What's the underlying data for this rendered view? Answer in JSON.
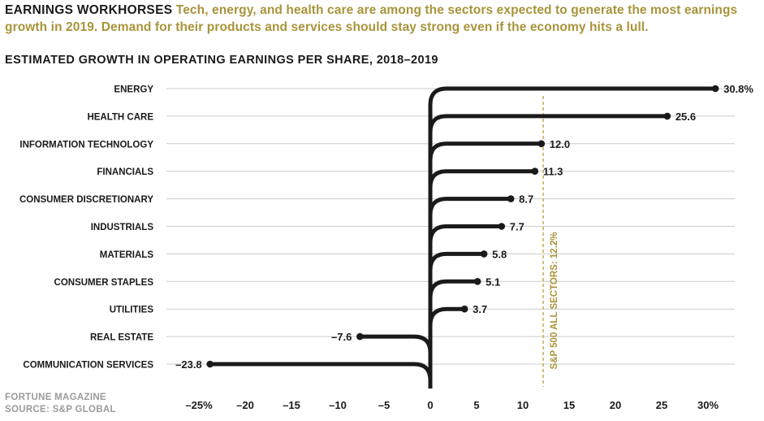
{
  "header": {
    "headline": "EARNINGS WORKHORSES",
    "text": "Tech, energy, and health care are among the sectors expected to generate the most earnings growth in 2019. Demand for their products and services should stay strong even if the economy hits a lull."
  },
  "credits": {
    "publisher": "FORTUNE MAGAZINE",
    "source": "SOURCE: S&P GLOBAL"
  },
  "colors": {
    "bar": "#1a1a1a",
    "accent": "#a8943a",
    "grid": "#cccccc",
    "reference": "#c8b25a"
  },
  "chart_data": {
    "type": "bar",
    "orientation": "horizontal",
    "title": "ESTIMATED GROWTH IN OPERATING EARNINGS PER SHARE, 2018–2019",
    "categories": [
      "ENERGY",
      "HEALTH CARE",
      "INFORMATION TECHNOLOGY",
      "FINANCIALS",
      "CONSUMER DISCRETIONARY",
      "INDUSTRIALS",
      "MATERIALS",
      "CONSUMER STAPLES",
      "UTILITIES",
      "REAL ESTATE",
      "COMMUNICATION SERVICES"
    ],
    "values": [
      30.8,
      25.6,
      12.0,
      11.3,
      8.7,
      7.7,
      5.8,
      5.1,
      3.7,
      -7.6,
      -23.8
    ],
    "value_labels": [
      "30.8%",
      "25.6",
      "12.0",
      "11.3",
      "8.7",
      "7.7",
      "5.8",
      "5.1",
      "3.7",
      "–7.6",
      "–23.8"
    ],
    "xlim": [
      -25,
      30
    ],
    "xticks": [
      -25,
      -20,
      -15,
      -10,
      -5,
      0,
      5,
      10,
      15,
      20,
      25,
      30
    ],
    "xtick_labels": [
      "–25%",
      "–20",
      "–15",
      "–10",
      "–5",
      "0",
      "5",
      "10",
      "15",
      "20",
      "25",
      "30%"
    ],
    "grid": true,
    "reference_line": {
      "value": 12.2,
      "label": "S&P 500 ALL SECTORS: 12.2%"
    }
  }
}
